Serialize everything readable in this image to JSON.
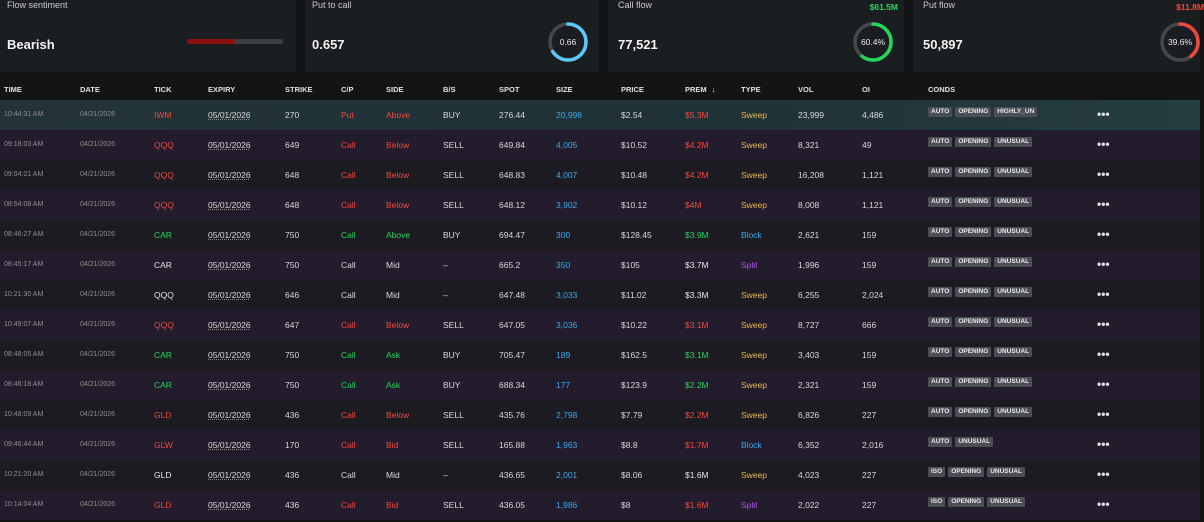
{
  "cards": {
    "sentiment": {
      "title": "Flow sentiment",
      "value": "Bearish",
      "fill": 0.5,
      "fill_color": "#8e0e0e"
    },
    "put_to_call": {
      "title": "Put to call",
      "value": "0.657",
      "gauge_label": "0.66",
      "gauge_fraction": 0.66,
      "gauge_color": "#5ac8fa"
    },
    "call_flow": {
      "title": "Call flow",
      "value": "77,521",
      "amount": "$61.5M",
      "amount_color": "#22d65c",
      "gauge_label": "60.4%",
      "gauge_fraction": 0.604,
      "gauge_color": "#22d65c"
    },
    "put_flow": {
      "title": "Put flow",
      "value": "50,897",
      "amount": "$11.8M",
      "amount_color": "#f0483e",
      "gauge_label": "39.6%",
      "gauge_fraction": 0.396,
      "gauge_color": "#f0483e"
    }
  },
  "columns": {
    "time": "TIME",
    "date": "DATE",
    "tick": "TICK",
    "expiry": "EXPIRY",
    "strike": "STRIKE",
    "cp": "C/P",
    "side": "SIDE",
    "bs": "B/S",
    "spot": "SPOT",
    "size": "SIZE",
    "price": "PRICE",
    "prem": "PREM",
    "sort_icon": "↓",
    "type": "TYPE",
    "vol": "VOL",
    "oi": "OI",
    "conds": "CONDS"
  },
  "more_icon": "•••",
  "rows": [
    {
      "time": "10:44:31 AM",
      "date": "04/21/2026",
      "tick": "IWM",
      "expiry": "05/01/2026",
      "strike": "270",
      "cp": "Put",
      "side": "Above",
      "bs": "BUY",
      "spot": "276.44",
      "size": "20,998",
      "price": "$2.54",
      "prem": "$5.3M",
      "type": "Sweep",
      "vol": "23,999",
      "oi": "4,486",
      "conds": [
        "AUTO",
        "OPENING",
        "HIGHLY_UN"
      ]
    },
    {
      "time": "09:18:03 AM",
      "date": "04/21/2026",
      "tick": "QQQ",
      "expiry": "05/01/2026",
      "strike": "649",
      "cp": "Call",
      "side": "Below",
      "bs": "SELL",
      "spot": "649.84",
      "size": "4,005",
      "price": "$10.52",
      "prem": "$4.2M",
      "type": "Sweep",
      "vol": "8,321",
      "oi": "49",
      "conds": [
        "AUTO",
        "OPENING",
        "UNUSUAL"
      ]
    },
    {
      "time": "09:04:21 AM",
      "date": "04/21/2026",
      "tick": "QQQ",
      "expiry": "05/01/2026",
      "strike": "648",
      "cp": "Call",
      "side": "Below",
      "bs": "SELL",
      "spot": "648.83",
      "size": "4,007",
      "price": "$10.48",
      "prem": "$4.2M",
      "type": "Sweep",
      "vol": "16,208",
      "oi": "1,121",
      "conds": [
        "AUTO",
        "OPENING",
        "UNUSUAL"
      ]
    },
    {
      "time": "08:54:08 AM",
      "date": "04/21/2026",
      "tick": "QQQ",
      "expiry": "05/01/2026",
      "strike": "648",
      "cp": "Call",
      "side": "Below",
      "bs": "SELL",
      "spot": "648.12",
      "size": "3,902",
      "price": "$10.12",
      "prem": "$4M",
      "type": "Sweep",
      "vol": "8,008",
      "oi": "1,121",
      "conds": [
        "AUTO",
        "OPENING",
        "UNUSUAL"
      ]
    },
    {
      "time": "08:46:27 AM",
      "date": "04/21/2026",
      "tick": "CAR",
      "expiry": "05/01/2026",
      "strike": "750",
      "cp": "Call",
      "side": "Above",
      "bs": "BUY",
      "spot": "694.47",
      "size": "300",
      "price": "$128.45",
      "prem": "$3.9M",
      "type": "Block",
      "vol": "2,621",
      "oi": "159",
      "conds": [
        "AUTO",
        "OPENING",
        "UNUSUAL"
      ]
    },
    {
      "time": "08:45:17 AM",
      "date": "04/21/2026",
      "tick": "CAR",
      "expiry": "05/01/2026",
      "strike": "750",
      "cp": "Call",
      "side": "Mid",
      "bs": "–",
      "spot": "665.2",
      "size": "350",
      "price": "$105",
      "prem": "$3.7M",
      "type": "Split",
      "vol": "1,996",
      "oi": "159",
      "conds": [
        "AUTO",
        "OPENING",
        "UNUSUAL"
      ]
    },
    {
      "time": "10:21:30 AM",
      "date": "04/21/2026",
      "tick": "QQQ",
      "expiry": "05/01/2026",
      "strike": "646",
      "cp": "Call",
      "side": "Mid",
      "bs": "–",
      "spot": "647.48",
      "size": "3,033",
      "price": "$11.02",
      "prem": "$3.3M",
      "type": "Sweep",
      "vol": "6,255",
      "oi": "2,024",
      "conds": [
        "AUTO",
        "OPENING",
        "UNUSUAL"
      ]
    },
    {
      "time": "10:49:07 AM",
      "date": "04/21/2026",
      "tick": "QQQ",
      "expiry": "05/01/2026",
      "strike": "647",
      "cp": "Call",
      "side": "Below",
      "bs": "SELL",
      "spot": "647.05",
      "size": "3,036",
      "price": "$10.22",
      "prem": "$3.1M",
      "type": "Sweep",
      "vol": "8,727",
      "oi": "666",
      "conds": [
        "AUTO",
        "OPENING",
        "UNUSUAL"
      ]
    },
    {
      "time": "08:48:05 AM",
      "date": "04/21/2026",
      "tick": "CAR",
      "expiry": "05/01/2026",
      "strike": "750",
      "cp": "Call",
      "side": "Ask",
      "bs": "BUY",
      "spot": "705.47",
      "size": "189",
      "price": "$162.5",
      "prem": "$3.1M",
      "type": "Sweep",
      "vol": "3,403",
      "oi": "159",
      "conds": [
        "AUTO",
        "OPENING",
        "UNUSUAL"
      ]
    },
    {
      "time": "08:46:18 AM",
      "date": "04/21/2026",
      "tick": "CAR",
      "expiry": "05/01/2026",
      "strike": "750",
      "cp": "Call",
      "side": "Ask",
      "bs": "BUY",
      "spot": "688.34",
      "size": "177",
      "price": "$123.9",
      "prem": "$2.2M",
      "type": "Sweep",
      "vol": "2,321",
      "oi": "159",
      "conds": [
        "AUTO",
        "OPENING",
        "UNUSUAL"
      ]
    },
    {
      "time": "10:48:09 AM",
      "date": "04/21/2026",
      "tick": "GLD",
      "expiry": "05/01/2026",
      "strike": "436",
      "cp": "Call",
      "side": "Below",
      "bs": "SELL",
      "spot": "435.76",
      "size": "2,798",
      "price": "$7.79",
      "prem": "$2.2M",
      "type": "Sweep",
      "vol": "6,826",
      "oi": "227",
      "conds": [
        "AUTO",
        "OPENING",
        "UNUSUAL"
      ]
    },
    {
      "time": "09:46:44 AM",
      "date": "04/21/2026",
      "tick": "GLW",
      "expiry": "05/01/2026",
      "strike": "170",
      "cp": "Call",
      "side": "Bid",
      "bs": "SELL",
      "spot": "165.88",
      "size": "1,963",
      "price": "$8.8",
      "prem": "$1.7M",
      "type": "Block",
      "vol": "6,352",
      "oi": "2,016",
      "conds": [
        "AUTO",
        "UNUSUAL"
      ]
    },
    {
      "time": "10:21:20 AM",
      "date": "04/21/2026",
      "tick": "GLD",
      "expiry": "05/01/2026",
      "strike": "436",
      "cp": "Call",
      "side": "Mid",
      "bs": "–",
      "spot": "436.65",
      "size": "2,001",
      "price": "$8.06",
      "prem": "$1.6M",
      "type": "Sweep",
      "vol": "4,023",
      "oi": "227",
      "conds": [
        "ISO",
        "OPENING",
        "UNUSUAL"
      ]
    },
    {
      "time": "10:14:04 AM",
      "date": "04/21/2026",
      "tick": "GLD",
      "expiry": "05/01/2026",
      "strike": "436",
      "cp": "Call",
      "side": "Bid",
      "bs": "SELL",
      "spot": "436.05",
      "size": "1,986",
      "price": "$8",
      "prem": "$1.6M",
      "type": "Split",
      "vol": "2,022",
      "oi": "227",
      "conds": [
        "ISO",
        "OPENING",
        "UNUSUAL"
      ]
    }
  ]
}
